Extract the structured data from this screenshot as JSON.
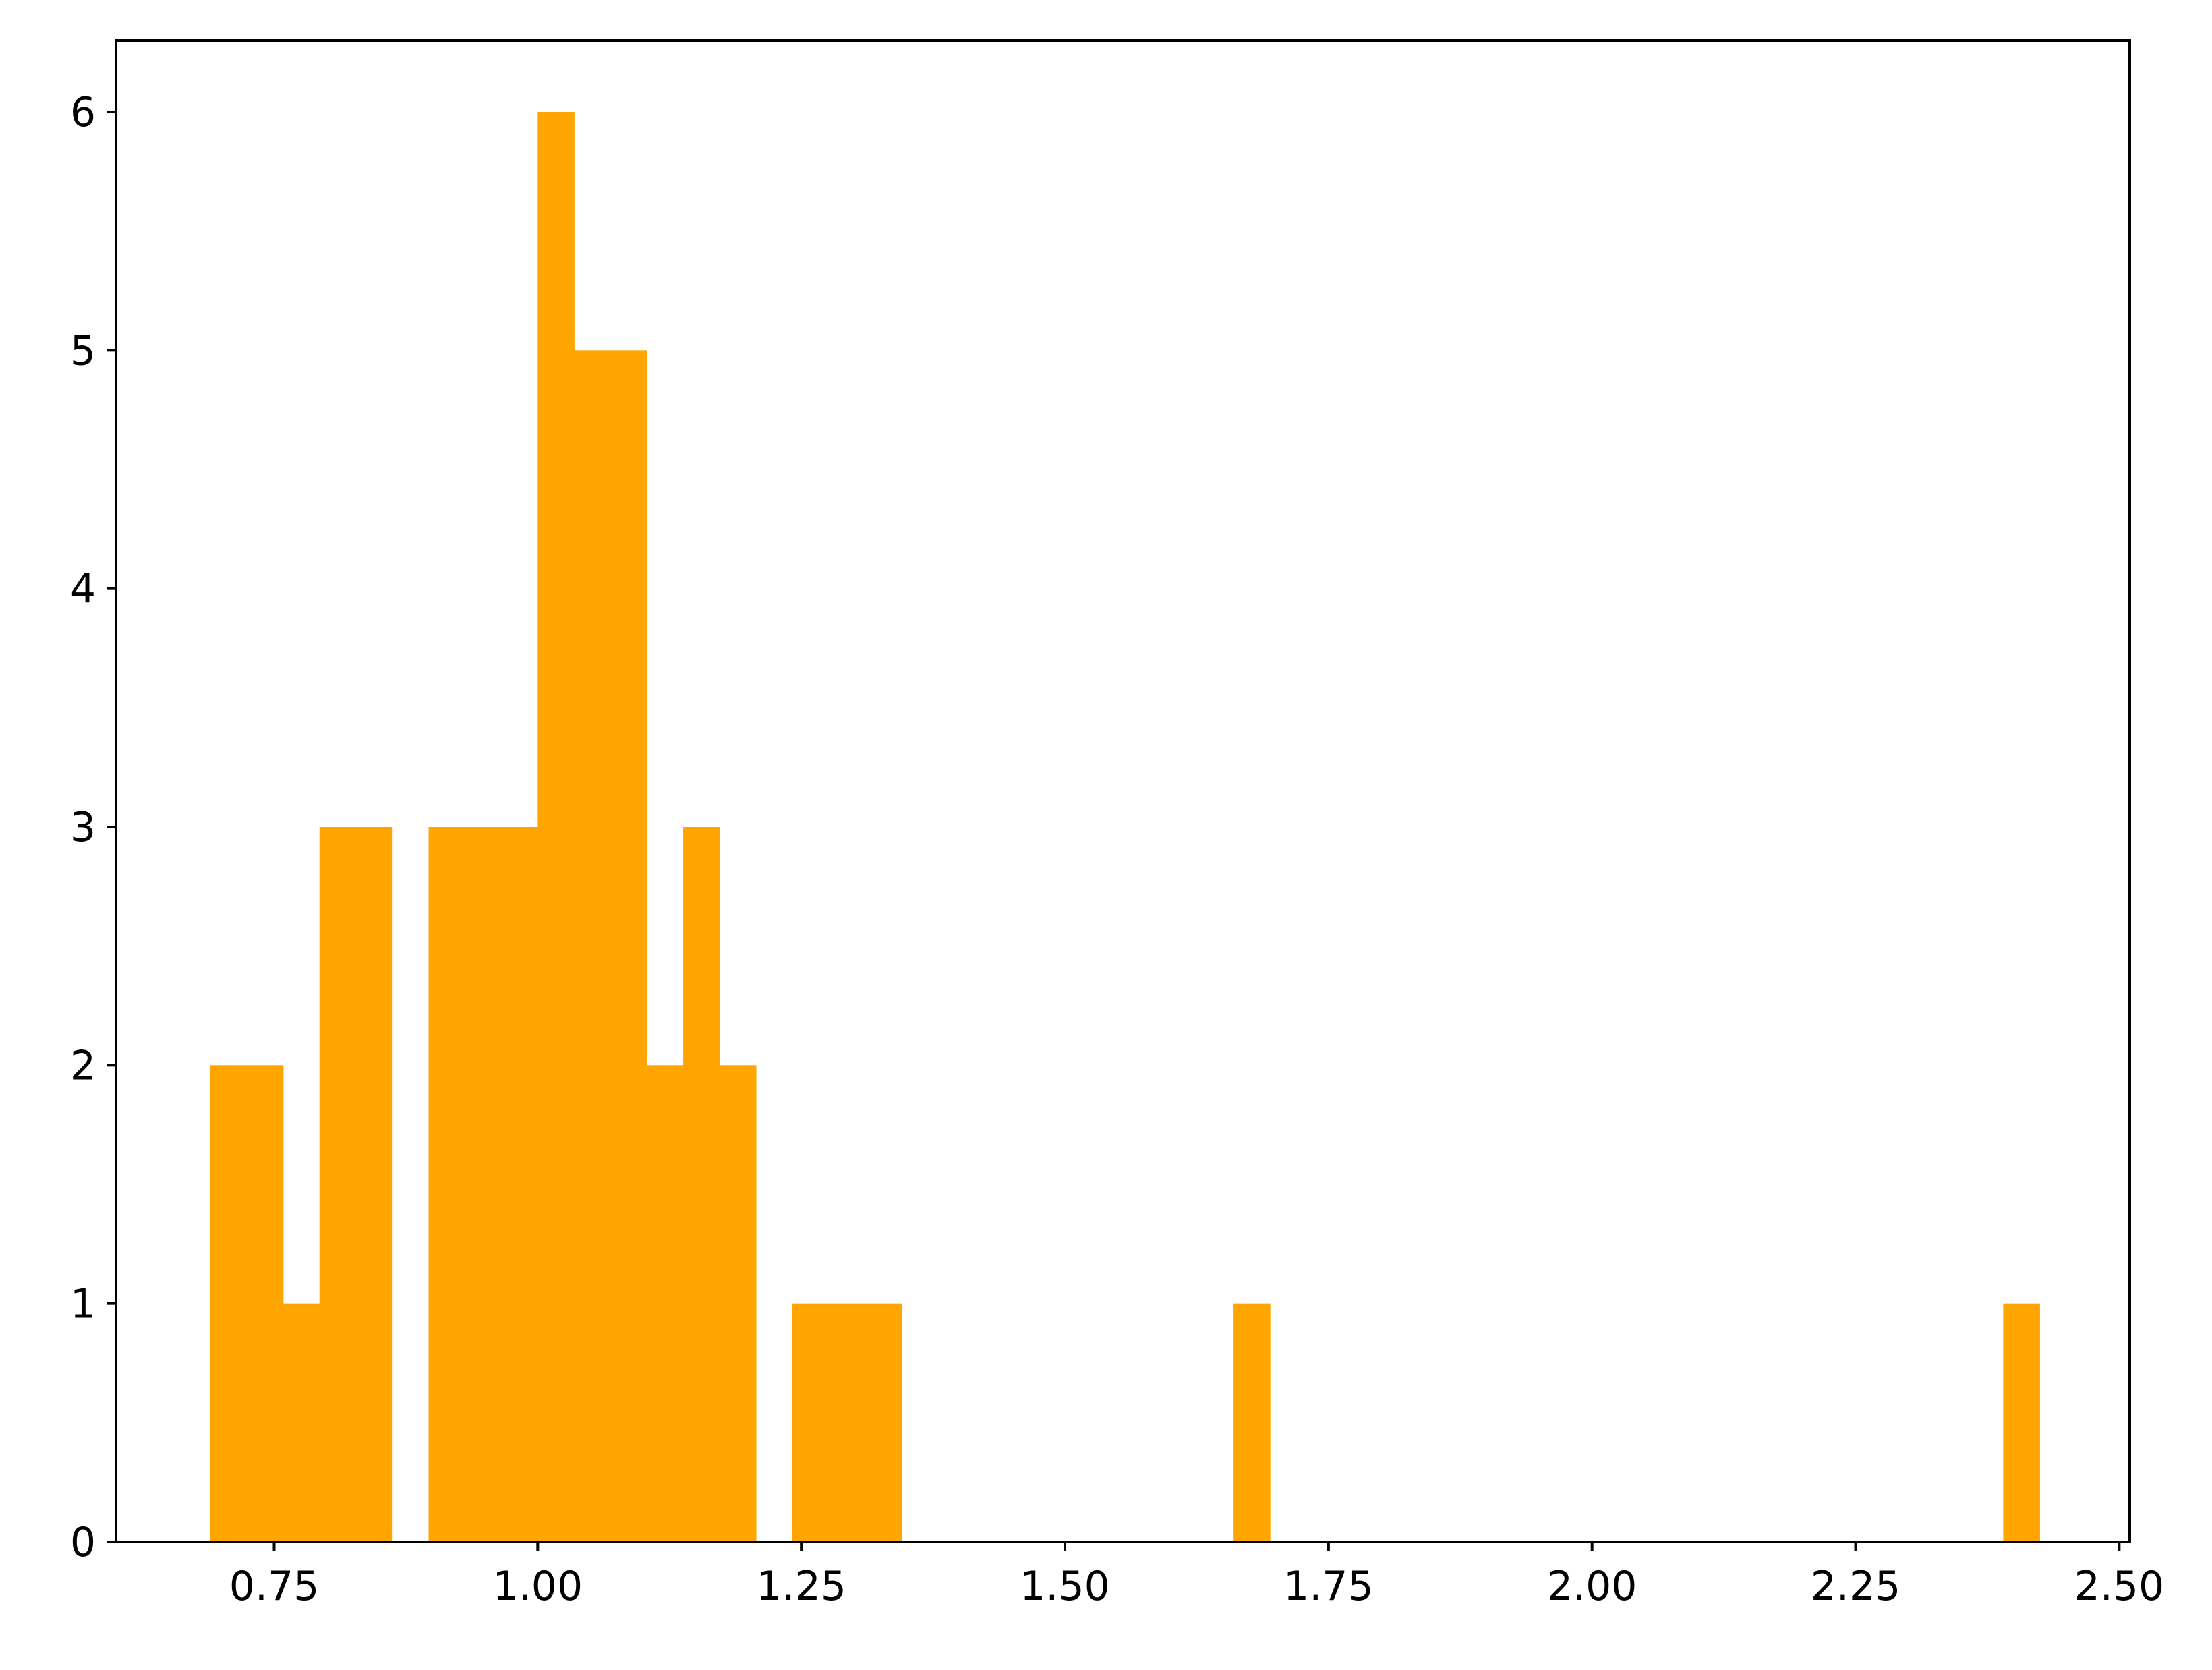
{
  "chart_data": {
    "type": "bar",
    "subtype": "histogram",
    "title": "",
    "xlabel": "",
    "ylabel": "",
    "bar_color": "#FFA500",
    "xlim": [
      0.6,
      2.51
    ],
    "ylim": [
      0,
      6.3
    ],
    "grid": false,
    "bin_width": 0.0345,
    "bins": [
      {
        "x_start": 0.6895,
        "x_end": 0.724,
        "count": 2
      },
      {
        "x_start": 0.724,
        "x_end": 0.7585,
        "count": 2
      },
      {
        "x_start": 0.7585,
        "x_end": 0.793,
        "count": 1
      },
      {
        "x_start": 0.793,
        "x_end": 0.8275,
        "count": 3
      },
      {
        "x_start": 0.8275,
        "x_end": 0.862,
        "count": 3
      },
      {
        "x_start": 0.862,
        "x_end": 0.8965,
        "count": 0
      },
      {
        "x_start": 0.8965,
        "x_end": 0.931,
        "count": 3
      },
      {
        "x_start": 0.931,
        "x_end": 0.9655,
        "count": 3
      },
      {
        "x_start": 0.9655,
        "x_end": 1.0,
        "count": 3
      },
      {
        "x_start": 1.0,
        "x_end": 1.0345,
        "count": 6
      },
      {
        "x_start": 1.0345,
        "x_end": 1.069,
        "count": 5
      },
      {
        "x_start": 1.069,
        "x_end": 1.1035,
        "count": 5
      },
      {
        "x_start": 1.1035,
        "x_end": 1.138,
        "count": 2
      },
      {
        "x_start": 1.138,
        "x_end": 1.1725,
        "count": 3
      },
      {
        "x_start": 1.1725,
        "x_end": 1.207,
        "count": 2
      },
      {
        "x_start": 1.207,
        "x_end": 1.2415,
        "count": 0
      },
      {
        "x_start": 1.2415,
        "x_end": 1.276,
        "count": 1
      },
      {
        "x_start": 1.276,
        "x_end": 1.3105,
        "count": 1
      },
      {
        "x_start": 1.3105,
        "x_end": 1.345,
        "count": 1
      },
      {
        "x_start": 1.66,
        "x_end": 1.6945,
        "count": 1
      },
      {
        "x_start": 2.39,
        "x_end": 2.4245,
        "count": 1
      }
    ],
    "x_ticks": [
      0.75,
      1.0,
      1.25,
      1.5,
      1.75,
      2.0,
      2.25,
      2.5
    ],
    "x_tick_labels": [
      "0.75",
      "1.00",
      "1.25",
      "1.50",
      "1.75",
      "2.00",
      "2.25",
      "2.50"
    ],
    "y_ticks": [
      0,
      1,
      2,
      3,
      4,
      5,
      6
    ],
    "y_tick_labels": [
      "0",
      "1",
      "2",
      "3",
      "4",
      "5",
      "6"
    ]
  }
}
